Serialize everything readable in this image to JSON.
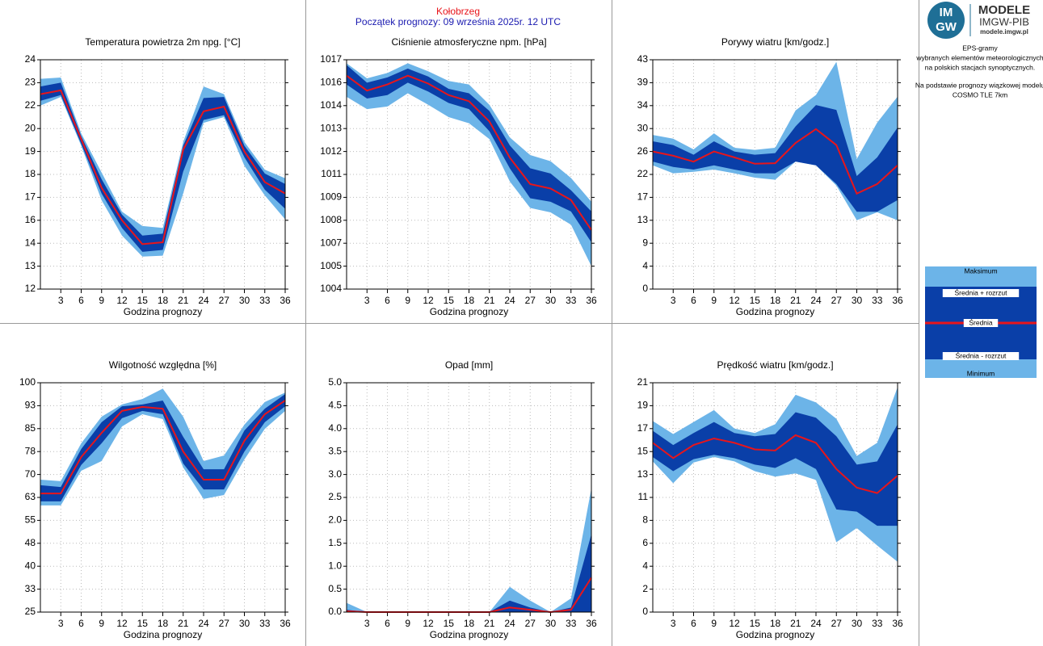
{
  "header": {
    "station": "Kołobrzeg",
    "forecast_start": "Początek prognozy: 09 września 2025r. 12 UTC"
  },
  "logo": {
    "mark_top": "IM",
    "mark_bottom": "GW",
    "title": "MODELE",
    "subtitle": "IMGW-PIB",
    "url": "modele.imgw.pl"
  },
  "description": {
    "lines": [
      "EPS-gramy",
      "wybranych elementów meteorologicznych",
      "na polskich stacjach  synoptycznych."
    ],
    "source_lines": [
      "Na podstawie prognozy wiązkowej modelu",
      "COSMO TLE 7km"
    ]
  },
  "legend": {
    "items": [
      {
        "name": "Maksimum",
        "color": "#6cb4e8"
      },
      {
        "name": "Średnia + rozrzut",
        "color": "#0a3fa8"
      },
      {
        "name": "Średnia",
        "color": "#e8151b"
      },
      {
        "name": "Średnia - rozrzut",
        "color": "#0a3fa8"
      },
      {
        "name": "Minimum",
        "color": "#6cb4e8"
      }
    ]
  },
  "chart_data": [
    {
      "type": "band",
      "title": "Temperatura powietrza 2m npg. [°C]",
      "x_label": "Godzina prognozy",
      "grid": true,
      "x": [
        0,
        3,
        6,
        9,
        12,
        15,
        18,
        21,
        24,
        27,
        30,
        33,
        36
      ],
      "xlim": [
        0,
        36
      ],
      "xticks": [
        3,
        6,
        9,
        12,
        15,
        18,
        21,
        24,
        27,
        30,
        33,
        36
      ],
      "ylim": [
        12,
        24
      ],
      "yticks": [
        12,
        {
          "value": 13.2,
          "label": "13"
        },
        {
          "value": 14.4,
          "label": "14"
        },
        {
          "value": 15.6,
          "label": "16"
        },
        {
          "value": 16.8,
          "label": "17"
        },
        18,
        {
          "value": 19.2,
          "label": "19"
        },
        {
          "value": 20.4,
          "label": "20"
        },
        {
          "value": 21.6,
          "label": "22"
        },
        {
          "value": 22.8,
          "label": "23"
        },
        24
      ],
      "series": [
        {
          "color": "#6cb4e8",
          "values": [
            23.0,
            23.07,
            20.15,
            18.1,
            16.05,
            15.3,
            15.2,
            19.7,
            22.6,
            22.2,
            19.7,
            18.25,
            17.8
          ]
        },
        {
          "color": "#0a3fa8",
          "values": [
            22.6,
            22.8,
            20.0,
            17.75,
            15.9,
            14.8,
            14.9,
            19.5,
            22.0,
            22.05,
            19.5,
            18.05,
            17.5
          ]
        },
        {
          "color": "#e8151b",
          "values": [
            22.2,
            22.4,
            19.85,
            17.3,
            15.6,
            14.35,
            14.45,
            19.3,
            21.3,
            21.55,
            19.2,
            17.6,
            17.0
          ]
        },
        {
          "color": "#0a3fa8",
          "values": [
            21.85,
            22.15,
            19.6,
            17.0,
            15.2,
            13.95,
            14.05,
            18.15,
            20.85,
            21.1,
            18.9,
            17.2,
            16.2
          ]
        },
        {
          "color": "#6cb4e8",
          "values": [
            21.6,
            22.05,
            19.5,
            16.65,
            14.8,
            13.7,
            13.75,
            17.0,
            20.7,
            21.0,
            18.45,
            16.9,
            15.65
          ]
        }
      ]
    },
    {
      "type": "band",
      "title": "Ciśnienie atmosferyczne npm. [hPa]",
      "x_label": "Godzina prognozy",
      "grid": true,
      "x": [
        0,
        3,
        6,
        9,
        12,
        15,
        18,
        21,
        24,
        27,
        30,
        33,
        36
      ],
      "xlim": [
        0,
        36
      ],
      "xticks": [
        3,
        6,
        9,
        12,
        15,
        18,
        21,
        24,
        27,
        30,
        33,
        36
      ],
      "ylim": [
        1004,
        1017
      ],
      "yticks": [
        1004,
        {
          "value": 1005.3,
          "label": "1005"
        },
        {
          "value": 1006.6,
          "label": "1007"
        },
        {
          "value": 1007.9,
          "label": "1008"
        },
        {
          "value": 1009.2,
          "label": "1009"
        },
        {
          "value": 1010.5,
          "label": "1011"
        },
        {
          "value": 1011.8,
          "label": "1012"
        },
        {
          "value": 1013.1,
          "label": "1013"
        },
        {
          "value": 1014.4,
          "label": "1014"
        },
        {
          "value": 1015.7,
          "label": "1016"
        },
        1017
      ],
      "series": [
        {
          "color": "#6cb4e8",
          "values": [
            1016.8,
            1015.95,
            1016.25,
            1016.8,
            1016.35,
            1015.8,
            1015.6,
            1014.45,
            1012.6,
            1011.6,
            1011.25,
            1010.3,
            1008.95
          ]
        },
        {
          "color": "#0a3fa8",
          "values": [
            1016.7,
            1015.7,
            1016.0,
            1016.5,
            1016.05,
            1015.35,
            1015.1,
            1014.1,
            1012.15,
            1010.85,
            1010.55,
            1009.6,
            1008.4
          ]
        },
        {
          "color": "#e8151b",
          "values": [
            1016.1,
            1015.25,
            1015.6,
            1016.1,
            1015.65,
            1015.0,
            1014.65,
            1013.5,
            1011.45,
            1009.95,
            1009.7,
            1009.05,
            1007.35
          ]
        },
        {
          "color": "#0a3fa8",
          "values": [
            1015.6,
            1014.8,
            1015.0,
            1015.7,
            1015.2,
            1014.55,
            1014.2,
            1012.95,
            1010.85,
            1009.15,
            1008.95,
            1008.4,
            1006.65
          ]
        },
        {
          "color": "#6cb4e8",
          "values": [
            1014.9,
            1014.2,
            1014.35,
            1015.1,
            1014.45,
            1013.75,
            1013.4,
            1012.5,
            1010.1,
            1008.6,
            1008.35,
            1007.65,
            1005.3
          ]
        }
      ]
    },
    {
      "type": "band",
      "title": "Porywy wiatru [km/godz.]",
      "x_label": "Godzina prognozy",
      "grid": true,
      "x": [
        0,
        3,
        6,
        9,
        12,
        15,
        18,
        21,
        24,
        27,
        30,
        33,
        36
      ],
      "xlim": [
        0,
        36
      ],
      "xticks": [
        3,
        6,
        9,
        12,
        15,
        18,
        21,
        24,
        27,
        30,
        33,
        36
      ],
      "ylim": [
        0,
        43
      ],
      "yticks": [
        0,
        {
          "value": 4.3,
          "label": "4"
        },
        {
          "value": 8.6,
          "label": "9"
        },
        {
          "value": 12.9,
          "label": "13"
        },
        {
          "value": 17.2,
          "label": "17"
        },
        {
          "value": 21.5,
          "label": "22"
        },
        {
          "value": 25.8,
          "label": "26"
        },
        {
          "value": 30.1,
          "label": "30"
        },
        {
          "value": 34.4,
          "label": "34"
        },
        {
          "value": 38.7,
          "label": "39"
        },
        43
      ],
      "series": [
        {
          "color": "#6cb4e8",
          "values": [
            28.9,
            28.2,
            26.2,
            29.2,
            26.5,
            26.1,
            26.5,
            33.5,
            36.4,
            42.6,
            24.4,
            31.2,
            36.1
          ]
        },
        {
          "color": "#0a3fa8",
          "values": [
            27.7,
            27.0,
            25.2,
            27.7,
            25.8,
            25.2,
            25.5,
            30.5,
            34.5,
            33.6,
            21.2,
            24.7,
            30.3
          ]
        },
        {
          "color": "#e8151b",
          "values": [
            25.8,
            25.0,
            23.9,
            25.8,
            24.7,
            23.5,
            23.6,
            27.4,
            30.0,
            27.0,
            17.9,
            19.7,
            23.2
          ]
        },
        {
          "color": "#0a3fa8",
          "values": [
            23.9,
            22.9,
            22.4,
            23.2,
            22.4,
            21.7,
            21.7,
            23.9,
            23.2,
            19.7,
            14.5,
            14.5,
            16.7
          ]
        },
        {
          "color": "#6cb4e8",
          "values": [
            23.2,
            21.7,
            22.0,
            22.4,
            21.7,
            20.9,
            20.5,
            23.9,
            23.2,
            19.4,
            12.9,
            14.4,
            12.9
          ]
        }
      ]
    },
    {
      "type": "band",
      "title": "Wilgotność względna [%]",
      "x_label": "Godzina prognozy",
      "grid": true,
      "x": [
        0,
        3,
        6,
        9,
        12,
        15,
        18,
        21,
        24,
        27,
        30,
        33,
        36
      ],
      "xlim": [
        0,
        36
      ],
      "xticks": [
        3,
        6,
        9,
        12,
        15,
        18,
        21,
        24,
        27,
        30,
        33,
        36
      ],
      "ylim": [
        25,
        100
      ],
      "yticks": [
        25,
        {
          "value": 32.5,
          "label": "33"
        },
        40,
        {
          "value": 47.5,
          "label": "48"
        },
        55,
        {
          "value": 62.5,
          "label": "63"
        },
        70,
        {
          "value": 77.5,
          "label": "78"
        },
        85,
        {
          "value": 92.5,
          "label": "93"
        },
        100
      ],
      "series": [
        {
          "color": "#6cb4e8",
          "values": [
            68.3,
            67.8,
            80.2,
            88.9,
            92.9,
            94.7,
            98.1,
            88.9,
            74.4,
            76.2,
            86.3,
            93.7,
            96.8
          ]
        },
        {
          "color": "#0a3fa8",
          "values": [
            66.5,
            65.9,
            78.3,
            87.1,
            92.3,
            92.9,
            94.2,
            82.3,
            71.7,
            71.7,
            84.4,
            91.5,
            96.3
          ]
        },
        {
          "color": "#e8151b",
          "values": [
            63.8,
            63.8,
            75.7,
            83.6,
            90.8,
            92.1,
            91.5,
            77.5,
            68.3,
            68.3,
            81.0,
            89.7,
            94.2
          ]
        },
        {
          "color": "#0a3fa8",
          "values": [
            61.2,
            61.2,
            73.1,
            80.2,
            88.4,
            90.8,
            89.7,
            73.6,
            65.1,
            65.1,
            77.5,
            87.1,
            92.3
          ]
        },
        {
          "color": "#6cb4e8",
          "values": [
            59.9,
            59.9,
            71.2,
            74.4,
            85.7,
            89.7,
            88.1,
            72.3,
            62.0,
            63.3,
            74.9,
            84.9,
            90.8
          ]
        }
      ]
    },
    {
      "type": "band",
      "title": "Opad [mm]",
      "x_label": "Godzina prognozy",
      "grid": true,
      "x": [
        0,
        3,
        6,
        9,
        12,
        15,
        18,
        21,
        24,
        27,
        30,
        33,
        36
      ],
      "xlim": [
        0,
        36
      ],
      "xticks": [
        3,
        6,
        9,
        12,
        15,
        18,
        21,
        24,
        27,
        30,
        33,
        36
      ],
      "ylim": [
        0,
        5
      ],
      "yticks": [
        {
          "value": 0,
          "label": "0.0"
        },
        0.5,
        {
          "value": 1,
          "label": "1.0"
        },
        1.5,
        {
          "value": 2,
          "label": "2.0"
        },
        2.5,
        {
          "value": 3,
          "label": "3.0"
        },
        3.5,
        {
          "value": 4,
          "label": "4.0"
        },
        4.5,
        {
          "value": 5,
          "label": "5.0"
        }
      ],
      "series": [
        {
          "color": "#6cb4e8",
          "values": [
            0.2,
            0,
            0,
            0,
            0,
            0,
            0,
            0,
            0.55,
            0.25,
            0,
            0.3,
            2.7
          ]
        },
        {
          "color": "#0a3fa8",
          "values": [
            0.05,
            0,
            0,
            0,
            0,
            0,
            0,
            0,
            0.25,
            0.1,
            0,
            0.1,
            1.7
          ]
        },
        {
          "color": "#e8151b",
          "values": [
            0.02,
            0,
            0,
            0,
            0,
            0,
            0,
            0,
            0.1,
            0.05,
            0,
            0.05,
            0.75
          ]
        },
        {
          "color": "#0a3fa8",
          "values": [
            0,
            0,
            0,
            0,
            0,
            0,
            0,
            0,
            0,
            0,
            0,
            0,
            0
          ]
        },
        {
          "color": "#6cb4e8",
          "values": [
            0,
            0,
            0,
            0,
            0,
            0,
            0,
            0,
            0,
            0,
            0,
            0,
            0
          ]
        }
      ]
    },
    {
      "type": "band",
      "title": "Prędkość wiatru [km/godz.]",
      "x_label": "Godzina prognozy",
      "grid": true,
      "x": [
        0,
        3,
        6,
        9,
        12,
        15,
        18,
        21,
        24,
        27,
        30,
        33,
        36
      ],
      "xlim": [
        0,
        36
      ],
      "xticks": [
        3,
        6,
        9,
        12,
        15,
        18,
        21,
        24,
        27,
        30,
        33,
        36
      ],
      "ylim": [
        0,
        21
      ],
      "yticks": [
        0,
        {
          "value": 2.1,
          "label": "2"
        },
        {
          "value": 4.2,
          "label": "4"
        },
        {
          "value": 6.3,
          "label": "6"
        },
        {
          "value": 8.4,
          "label": "8"
        },
        {
          "value": 10.5,
          "label": "11"
        },
        {
          "value": 12.6,
          "label": "13"
        },
        {
          "value": 14.7,
          "label": "15"
        },
        {
          "value": 16.8,
          "label": "17"
        },
        {
          "value": 18.9,
          "label": "19"
        },
        21
      ],
      "series": [
        {
          "color": "#6cb4e8",
          "values": [
            17.5,
            16.3,
            17.4,
            18.5,
            16.8,
            16.4,
            17.2,
            19.9,
            19.2,
            17.7,
            14.3,
            15.5,
            20.6
          ]
        },
        {
          "color": "#0a3fa8",
          "values": [
            16.6,
            15.3,
            16.4,
            17.4,
            16.4,
            16.1,
            16.3,
            18.3,
            17.8,
            16.1,
            13.5,
            13.8,
            17.2
          ]
        },
        {
          "color": "#e8151b",
          "values": [
            15.5,
            14.1,
            15.3,
            15.9,
            15.5,
            14.9,
            14.8,
            16.2,
            15.5,
            13.1,
            11.4,
            10.9,
            12.5
          ]
        },
        {
          "color": "#0a3fa8",
          "values": [
            14.2,
            12.9,
            14.0,
            14.4,
            14.1,
            13.5,
            13.2,
            14.1,
            13.1,
            9.4,
            9.2,
            7.9,
            7.9
          ]
        },
        {
          "color": "#6cb4e8",
          "values": [
            13.8,
            11.8,
            13.7,
            14.2,
            13.8,
            12.9,
            12.4,
            12.7,
            12.1,
            6.4,
            7.7,
            6.1,
            4.6
          ]
        }
      ]
    }
  ]
}
